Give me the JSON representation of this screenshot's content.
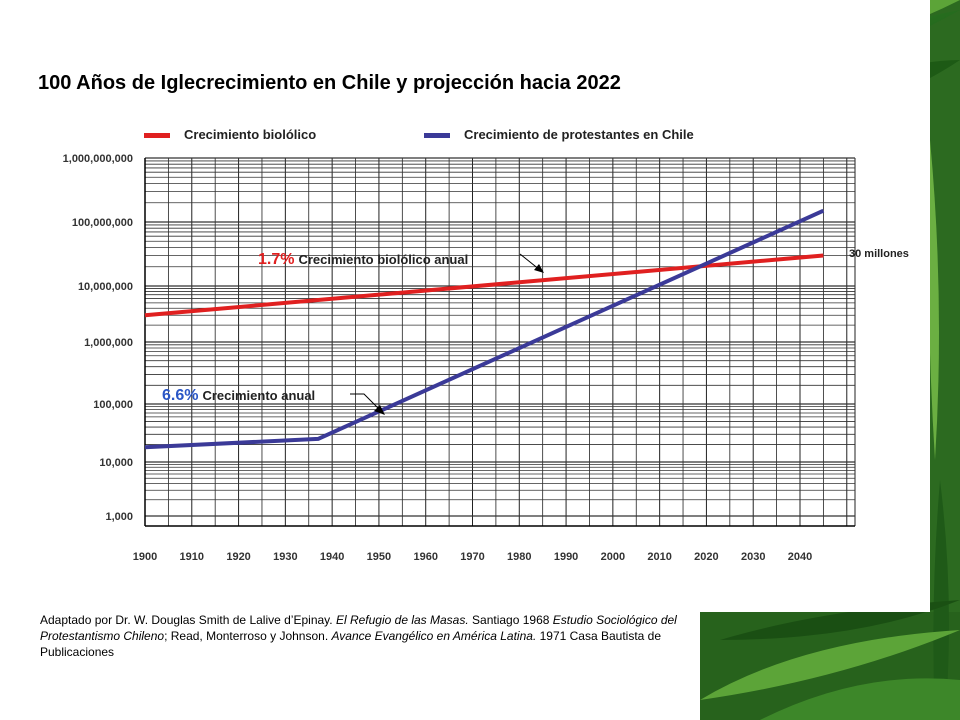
{
  "title": "100 Años de Iglecrecimiento en Chile y projección hacia 2022",
  "legend": [
    {
      "name": "Crecimiento biolólico",
      "color": "#e02020"
    },
    {
      "name": "Crecimiento de protestantes en Chile",
      "color": "#3b3a98"
    }
  ],
  "chart_data": {
    "type": "line",
    "yscale": "log",
    "ylim": [
      1000,
      1000000000
    ],
    "xlim": [
      1900,
      2050
    ],
    "y_ticks": [
      1000,
      10000,
      100000,
      1000000,
      10000000,
      100000000,
      1000000000
    ],
    "y_tick_labels": [
      "1,000",
      "10,000",
      "100,000",
      "1,000,000",
      "10,000,000",
      "100,000,000",
      "1,000,000,000"
    ],
    "x_ticks": [
      1900,
      1910,
      1920,
      1930,
      1940,
      1950,
      1960,
      1970,
      1980,
      1990,
      2000,
      2010,
      2020,
      2030,
      2040
    ],
    "x_tick_labels": [
      "1900",
      "1910",
      "1920",
      "1930",
      "1940",
      "1950",
      "1960",
      "1970",
      "1980",
      "1990",
      "2000",
      "2010",
      "2020",
      "2030",
      "2040"
    ],
    "grid": true,
    "series": [
      {
        "name": "Crecimiento biolólico",
        "color": "#e02020",
        "x": [
          1900,
          2045
        ],
        "y": [
          3000000,
          30000000
        ]
      },
      {
        "name": "Crecimiento de protestantes en Chile",
        "color": "#3b3a98",
        "x": [
          1900,
          1937,
          2045
        ],
        "y": [
          18000,
          25000,
          150000000
        ]
      }
    ],
    "annotations": [
      {
        "pct": "1.7%",
        "text": "Crecimiento biolólico anual",
        "color": "#e02020"
      },
      {
        "pct": "6.6%",
        "text": "Crecimiento anual",
        "color": "#2a56c6"
      },
      {
        "text": "30 millones"
      }
    ]
  },
  "source": {
    "p1": "Adaptado por Dr. W. Douglas Smith de Lalive d’Epinay. ",
    "i1": "El Refugio de las Masas.",
    "p2": " Santiago 1968 ",
    "i2": "Estudio Sociológico del Protestantismo Chileno",
    "p3": "; Read, Monterroso y Johnson. ",
    "i3": "Avance Evangélico en América Latina.",
    "p4": " 1971 Casa Bautista de Publicaciones"
  }
}
